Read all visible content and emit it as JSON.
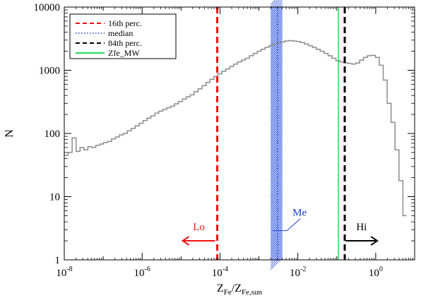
{
  "chart_data": {
    "type": "histogram",
    "xlabel": "Z",
    "xlabel_sub1": "Fe",
    "xlabel_slash": "/Z",
    "xlabel_sub2": "Fe,sun",
    "ylabel": "N",
    "xscale": "log",
    "yscale": "log",
    "xlim": [
      1e-08,
      10
    ],
    "ylim": [
      1,
      10000
    ],
    "x_ticks": [
      {
        "value": 1e-08,
        "base": "10",
        "exp": "-8"
      },
      {
        "value": 1e-06,
        "base": "10",
        "exp": "-6"
      },
      {
        "value": 0.0001,
        "base": "10",
        "exp": "-4"
      },
      {
        "value": 0.01,
        "base": "10",
        "exp": "-2"
      },
      {
        "value": 1,
        "base": "10",
        "exp": "0"
      }
    ],
    "y_ticks": [
      {
        "value": 1,
        "label": "1"
      },
      {
        "value": 10,
        "label": "10"
      },
      {
        "value": 100,
        "label": "100"
      },
      {
        "value": 1000,
        "label": "1000"
      },
      {
        "value": 10000,
        "label": "10000"
      }
    ],
    "histogram_color": "#8c8c8c",
    "histogram_x_range": [
      1e-08,
      6.3
    ],
    "histogram_counts": [
      45,
      50,
      85,
      52,
      60,
      55,
      62,
      60,
      65,
      68,
      72,
      75,
      82,
      88,
      95,
      100,
      110,
      120,
      132,
      145,
      160,
      175,
      190,
      210,
      225,
      240,
      255,
      270,
      295,
      320,
      350,
      380,
      410,
      460,
      510,
      570,
      640,
      720,
      800,
      880,
      960,
      1050,
      1150,
      1250,
      1350,
      1450,
      1550,
      1700,
      1850,
      2000,
      2150,
      2300,
      2450,
      2600,
      2700,
      2800,
      2900,
      2950,
      2900,
      2850,
      2750,
      2600,
      2450,
      2300,
      2150,
      2000,
      1850,
      1700,
      1550,
      1420,
      1350,
      1300,
      1280,
      1250,
      1300,
      1450,
      1600,
      1700,
      1720,
      1600,
      1200,
      700,
      300,
      150,
      55,
      18,
      5
    ],
    "legend_position": "top-left",
    "lines": [
      {
        "name": "16th perc.",
        "x": 8.5e-05,
        "color": "#ee1111",
        "style": "dashed"
      },
      {
        "name": "median",
        "x": 0.003,
        "color": "#1a3fd6",
        "style": "dotted"
      },
      {
        "name": "84th perc.",
        "x": 0.16,
        "color": "#000000",
        "style": "dashed"
      },
      {
        "name": "Zfe_MW",
        "x": 0.11,
        "color": "#22dd55",
        "style": "solid"
      }
    ],
    "median_band": [
      0.002,
      0.004
    ],
    "annotations": [
      {
        "text": "Lo",
        "color": "#ee1111",
        "arrow_from": 7.5e-05,
        "arrow_to": 1.1e-05,
        "y": 2
      },
      {
        "text": "Me",
        "color": "#1a3fd6"
      },
      {
        "text": "Hi",
        "color": "#000000",
        "arrow_from": 0.17,
        "arrow_to": 1.1,
        "y": 2
      }
    ]
  }
}
